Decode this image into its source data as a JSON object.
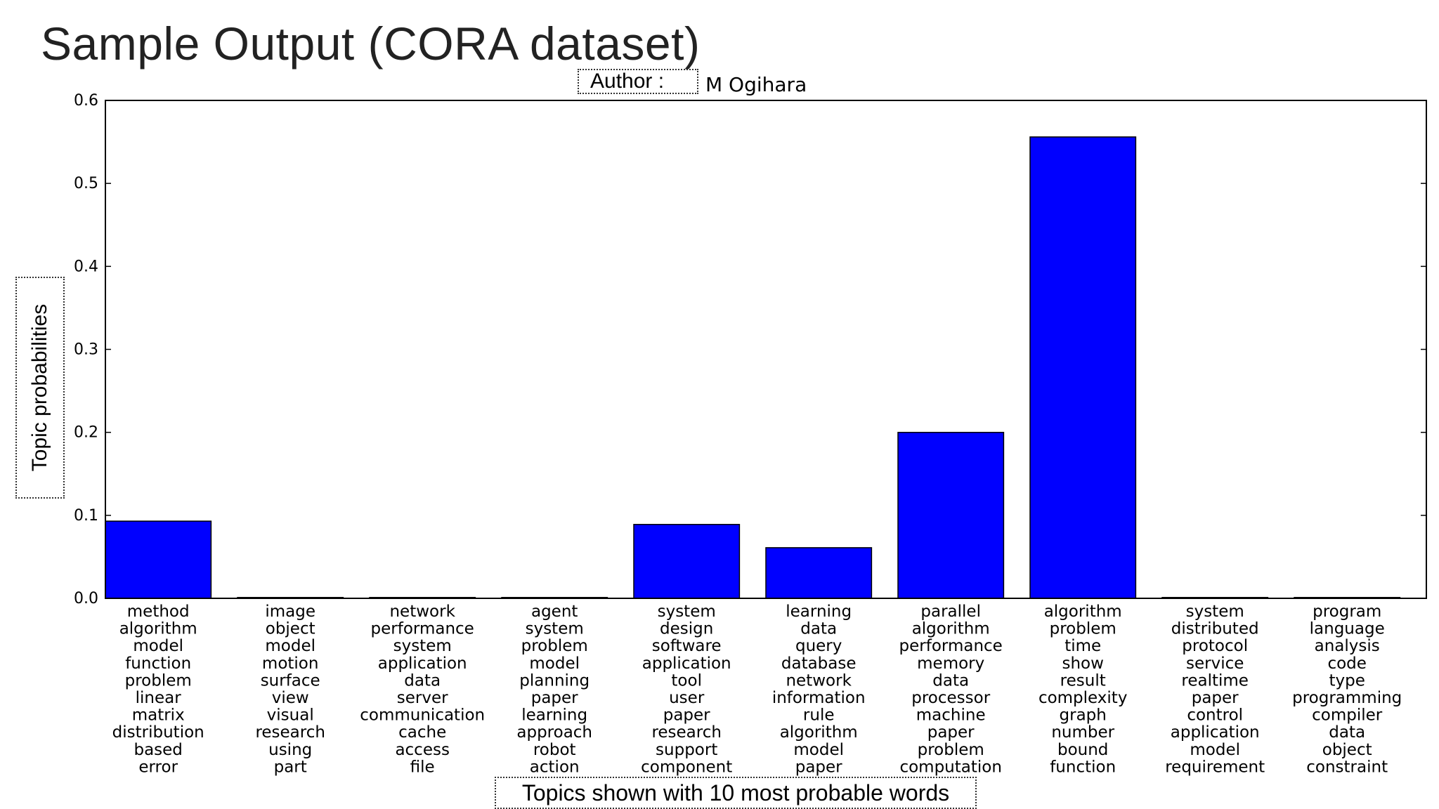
{
  "slide": {
    "title": "Sample Output (CORA dataset)",
    "author_label": "Author :",
    "author_name": "M Ogihara"
  },
  "chart_data": {
    "type": "bar",
    "ylabel": "Topic probabilities",
    "xlabel": "Topics shown with 10 most probable words",
    "ylim": [
      0,
      0.6
    ],
    "yticks": [
      "0.0",
      "0.1",
      "0.2",
      "0.3",
      "0.4",
      "0.5",
      "0.6"
    ],
    "bar_color": "#0000ff",
    "categories": [
      [
        "method",
        "algorithm",
        "model",
        "function",
        "problem",
        "linear",
        "matrix",
        "distribution",
        "based",
        "error"
      ],
      [
        "image",
        "object",
        "model",
        "motion",
        "surface",
        "view",
        "visual",
        "research",
        "using",
        "part"
      ],
      [
        "network",
        "performance",
        "system",
        "application",
        "data",
        "server",
        "communication",
        "cache",
        "access",
        "file"
      ],
      [
        "agent",
        "system",
        "problem",
        "model",
        "planning",
        "paper",
        "learning",
        "approach",
        "robot",
        "action"
      ],
      [
        "system",
        "design",
        "software",
        "application",
        "tool",
        "user",
        "paper",
        "research",
        "support",
        "component"
      ],
      [
        "learning",
        "data",
        "query",
        "database",
        "network",
        "information",
        "rule",
        "algorithm",
        "model",
        "paper"
      ],
      [
        "parallel",
        "algorithm",
        "performance",
        "memory",
        "data",
        "processor",
        "machine",
        "paper",
        "problem",
        "computation"
      ],
      [
        "algorithm",
        "problem",
        "time",
        "show",
        "result",
        "complexity",
        "graph",
        "number",
        "bound",
        "function"
      ],
      [
        "system",
        "distributed",
        "protocol",
        "service",
        "realtime",
        "paper",
        "control",
        "application",
        "model",
        "requirement"
      ],
      [
        "program",
        "language",
        "analysis",
        "code",
        "type",
        "programming",
        "compiler",
        "data",
        "object",
        "constraint"
      ]
    ],
    "values": [
      0.093,
      0.001,
      0.001,
      0.001,
      0.089,
      0.061,
      0.2,
      0.556,
      0.001,
      0.001
    ]
  }
}
